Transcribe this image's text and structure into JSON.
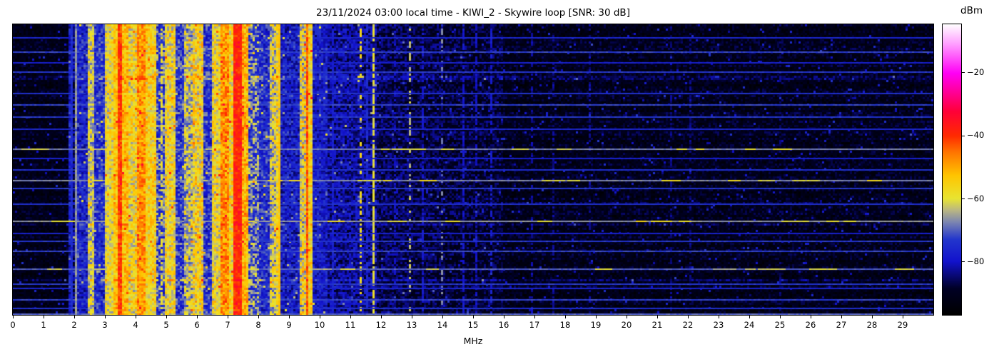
{
  "chart_data": {
    "type": "heatmap",
    "subtype": "radio-spectrogram-waterfall",
    "title": "23/11/2024 03:00 local time - KIWI_2 - Skywire loop [SNR: 30 dB]",
    "xlabel": "MHz",
    "ylabel": "",
    "x_range": [
      0,
      30
    ],
    "x_ticks": [
      0,
      1,
      2,
      3,
      4,
      5,
      6,
      7,
      8,
      9,
      10,
      11,
      12,
      13,
      14,
      15,
      16,
      17,
      18,
      19,
      20,
      21,
      22,
      23,
      24,
      25,
      26,
      27,
      28,
      29
    ],
    "y_ticks": [],
    "grid": false,
    "colorbar": {
      "label": "dBm",
      "ticks": [
        -20,
        -40,
        -60,
        -80
      ],
      "vmin": -96.8,
      "vmax": -4.6,
      "stops": [
        [
          0.0,
          "#000000"
        ],
        [
          0.09,
          "#000024"
        ],
        [
          0.184,
          "#1212cc"
        ],
        [
          0.26,
          "#2336cc"
        ],
        [
          0.32,
          "#7d86b0"
        ],
        [
          0.36,
          "#b9b683"
        ],
        [
          0.4,
          "#e8e431"
        ],
        [
          0.48,
          "#ffc400"
        ],
        [
          0.56,
          "#ff7400"
        ],
        [
          0.616,
          "#ff2a00"
        ],
        [
          0.7,
          "#ff0038"
        ],
        [
          0.832,
          "#ff00f5"
        ],
        [
          0.93,
          "#ff9bff"
        ],
        [
          1.0,
          "#ffffff"
        ]
      ]
    },
    "bands_dbm": [
      {
        "from_mhz": 0.0,
        "to_mhz": 1.82,
        "level": -91,
        "var": 4
      },
      {
        "from_mhz": 1.82,
        "to_mhz": 1.92,
        "level": -78,
        "var": 7
      },
      {
        "from_mhz": 1.92,
        "to_mhz": 2.0,
        "level": -84,
        "var": 6
      },
      {
        "from_mhz": 2.0,
        "to_mhz": 2.08,
        "level": -68,
        "var": 7
      },
      {
        "from_mhz": 2.08,
        "to_mhz": 2.42,
        "level": -77,
        "var": 7
      },
      {
        "from_mhz": 2.42,
        "to_mhz": 2.68,
        "level": -62,
        "var": 8
      },
      {
        "from_mhz": 2.68,
        "to_mhz": 3.03,
        "level": -75,
        "var": 7
      },
      {
        "from_mhz": 3.03,
        "to_mhz": 3.27,
        "level": -59,
        "var": 7
      },
      {
        "from_mhz": 3.27,
        "to_mhz": 3.45,
        "level": -53,
        "var": 6
      },
      {
        "from_mhz": 3.45,
        "to_mhz": 3.53,
        "level": -41,
        "var": 4
      },
      {
        "from_mhz": 3.53,
        "to_mhz": 3.76,
        "level": -52,
        "var": 6
      },
      {
        "from_mhz": 3.76,
        "to_mhz": 4.05,
        "level": -58,
        "var": 8
      },
      {
        "from_mhz": 4.05,
        "to_mhz": 4.34,
        "level": -48,
        "var": 6
      },
      {
        "from_mhz": 4.34,
        "to_mhz": 4.64,
        "level": -56,
        "var": 7
      },
      {
        "from_mhz": 4.64,
        "to_mhz": 4.93,
        "level": -71,
        "var": 10
      },
      {
        "from_mhz": 4.93,
        "to_mhz": 5.28,
        "level": -58,
        "var": 8
      },
      {
        "from_mhz": 5.28,
        "to_mhz": 5.58,
        "level": -73,
        "var": 8
      },
      {
        "from_mhz": 5.58,
        "to_mhz": 5.87,
        "level": -63,
        "var": 9
      },
      {
        "from_mhz": 5.87,
        "to_mhz": 6.2,
        "level": -57,
        "var": 9
      },
      {
        "from_mhz": 6.2,
        "to_mhz": 6.52,
        "level": -74,
        "var": 8
      },
      {
        "from_mhz": 6.52,
        "to_mhz": 6.76,
        "level": -59,
        "var": 8
      },
      {
        "from_mhz": 6.76,
        "to_mhz": 7.02,
        "level": -48,
        "var": 7
      },
      {
        "from_mhz": 7.02,
        "to_mhz": 7.2,
        "level": -57,
        "var": 7
      },
      {
        "from_mhz": 7.2,
        "to_mhz": 7.48,
        "level": -39,
        "var": 4
      },
      {
        "from_mhz": 7.48,
        "to_mhz": 7.68,
        "level": -51,
        "var": 7
      },
      {
        "from_mhz": 7.68,
        "to_mhz": 8.02,
        "level": -69,
        "var": 10
      },
      {
        "from_mhz": 8.02,
        "to_mhz": 8.34,
        "level": -75,
        "var": 7
      },
      {
        "from_mhz": 8.34,
        "to_mhz": 8.6,
        "level": -62,
        "var": 9
      },
      {
        "from_mhz": 8.6,
        "to_mhz": 8.74,
        "level": -58,
        "var": 8
      },
      {
        "from_mhz": 8.74,
        "to_mhz": 9.32,
        "level": -78,
        "var": 7
      },
      {
        "from_mhz": 9.32,
        "to_mhz": 9.58,
        "level": -60,
        "var": 10
      },
      {
        "from_mhz": 9.58,
        "to_mhz": 9.65,
        "level": -43,
        "var": 5
      },
      {
        "from_mhz": 9.65,
        "to_mhz": 9.8,
        "level": -56,
        "var": 7
      },
      {
        "from_mhz": 9.8,
        "to_mhz": 10.25,
        "level": -78,
        "var": 6
      },
      {
        "from_mhz": 10.25,
        "to_mhz": 11.25,
        "level": -82,
        "var": 6
      },
      {
        "from_mhz": 11.25,
        "to_mhz": 11.85,
        "level": -82,
        "var": 7
      },
      {
        "from_mhz": 11.85,
        "to_mhz": 13.0,
        "level": -86,
        "var": 5
      },
      {
        "from_mhz": 13.0,
        "to_mhz": 14.0,
        "level": -87,
        "var": 5
      },
      {
        "from_mhz": 14.0,
        "to_mhz": 16.0,
        "level": -88,
        "var": 5
      },
      {
        "from_mhz": 16.0,
        "to_mhz": 30.0,
        "level": -90.5,
        "var": 4.5
      }
    ],
    "carriers": [
      {
        "mhz": 1.87,
        "level": -75,
        "duty": 0.9
      },
      {
        "mhz": 2.03,
        "level": -66,
        "duty": 0.9
      },
      {
        "mhz": 4.78,
        "level": -59,
        "duty": 0.5
      },
      {
        "mhz": 8.67,
        "level": -53,
        "duty": 0.9
      },
      {
        "mhz": 10.42,
        "level": -77,
        "duty": 0.75
      },
      {
        "mhz": 11.28,
        "level": -57,
        "duty": 0.45
      },
      {
        "mhz": 11.5,
        "level": -75,
        "duty": 0.7
      },
      {
        "mhz": 11.72,
        "level": -60,
        "duty": 0.85
      },
      {
        "mhz": 12.4,
        "level": -80,
        "duty": 0.5
      },
      {
        "mhz": 12.93,
        "level": -63,
        "duty": 0.4
      },
      {
        "mhz": 13.35,
        "level": -79,
        "duty": 0.6
      },
      {
        "mhz": 13.92,
        "level": -68,
        "duty": 0.3
      },
      {
        "mhz": 14.63,
        "level": -79,
        "duty": 0.6
      },
      {
        "mhz": 15.05,
        "level": -80,
        "duty": 0.55
      },
      {
        "mhz": 15.55,
        "level": -78,
        "duty": 0.5
      },
      {
        "mhz": 16.85,
        "level": -82,
        "duty": 0.5
      },
      {
        "mhz": 17.55,
        "level": -83,
        "duty": 0.45
      },
      {
        "mhz": 18.8,
        "level": -83,
        "duty": 0.4
      },
      {
        "mhz": 21.45,
        "level": -84,
        "duty": 0.4
      },
      {
        "mhz": 22.05,
        "level": -84,
        "duty": 0.35
      },
      {
        "mhz": 25.0,
        "level": -85,
        "duty": 0.3
      }
    ],
    "noise_streaks": [
      {
        "t": 0.045,
        "level": -76,
        "patchy": 0
      },
      {
        "t": 0.093,
        "level": -72,
        "patchy": 0
      },
      {
        "t": 0.13,
        "level": -77,
        "patchy": 0
      },
      {
        "t": 0.162,
        "level": -73,
        "patchy": 0
      },
      {
        "t": 0.236,
        "level": -74,
        "patchy": 0
      },
      {
        "t": 0.275,
        "level": -72,
        "patchy": 0
      },
      {
        "t": 0.317,
        "level": -73,
        "patchy": 0
      },
      {
        "t": 0.36,
        "level": -76,
        "patchy": 0
      },
      {
        "t": 0.428,
        "level": -68,
        "patchy": 1
      },
      {
        "t": 0.46,
        "level": -77,
        "patchy": 0
      },
      {
        "t": 0.499,
        "level": -74,
        "patchy": 0
      },
      {
        "t": 0.538,
        "level": -67,
        "patchy": 1
      },
      {
        "t": 0.563,
        "level": -73,
        "patchy": 0
      },
      {
        "t": 0.617,
        "level": -74,
        "patchy": 0
      },
      {
        "t": 0.678,
        "level": -66,
        "patchy": 1
      },
      {
        "t": 0.72,
        "level": -77,
        "patchy": 0
      },
      {
        "t": 0.747,
        "level": -73,
        "patchy": 0
      },
      {
        "t": 0.781,
        "level": -72,
        "patchy": 0
      },
      {
        "t": 0.843,
        "level": -70,
        "patchy": 1
      },
      {
        "t": 0.894,
        "level": -73,
        "patchy": 0
      },
      {
        "t": 0.91,
        "level": -76,
        "patchy": 0
      },
      {
        "t": 0.949,
        "level": -72,
        "patchy": 0
      },
      {
        "t": 0.978,
        "level": -74,
        "patchy": 0
      },
      {
        "t": 0.997,
        "level": -70,
        "patchy": 0
      }
    ]
  }
}
